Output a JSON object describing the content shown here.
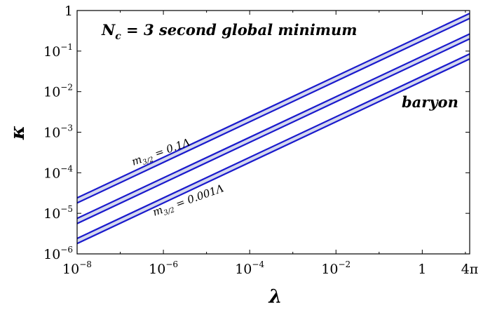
{
  "chart_data": {
    "type": "line",
    "xlabel": "λ",
    "ylabel": "κ",
    "xscale": "log",
    "yscale": "log",
    "xlim": [
      1e-08,
      12.566
    ],
    "ylim": [
      1e-06,
      1
    ],
    "xticks": [
      {
        "value": 1e-08,
        "base": "10",
        "exp": "−8",
        "text": ""
      },
      {
        "value": 1e-06,
        "base": "10",
        "exp": "−6",
        "text": ""
      },
      {
        "value": 0.0001,
        "base": "10",
        "exp": "−4",
        "text": ""
      },
      {
        "value": 0.01,
        "base": "10",
        "exp": "−2",
        "text": ""
      },
      {
        "value": 1,
        "base": "",
        "exp": "",
        "text": "1"
      },
      {
        "value": 12.566,
        "base": "",
        "exp": "",
        "text": "4π"
      }
    ],
    "yticks": [
      {
        "value": 1e-06,
        "base": "10",
        "exp": "−6",
        "text": ""
      },
      {
        "value": 1e-05,
        "base": "10",
        "exp": "−5",
        "text": ""
      },
      {
        "value": 0.0001,
        "base": "10",
        "exp": "−4",
        "text": ""
      },
      {
        "value": 0.001,
        "base": "10",
        "exp": "−3",
        "text": ""
      },
      {
        "value": 0.01,
        "base": "10",
        "exp": "−2",
        "text": ""
      },
      {
        "value": 0.1,
        "base": "10",
        "exp": "−1",
        "text": ""
      },
      {
        "value": 1,
        "base": "",
        "exp": "",
        "text": "1"
      }
    ],
    "grid": false,
    "series": [
      {
        "x": [
          1e-08,
          12.566
        ],
        "y": [
          2.4e-05,
          0.85
        ]
      },
      {
        "x": [
          1e-08,
          12.566
        ],
        "y": [
          1.8e-05,
          0.64
        ]
      },
      {
        "x": [
          1e-08,
          12.566
        ],
        "y": [
          7.5e-06,
          0.265
        ]
      },
      {
        "x": [
          1e-08,
          12.566
        ],
        "y": [
          5.6e-06,
          0.2
        ]
      },
      {
        "x": [
          1e-08,
          12.566
        ],
        "y": [
          2.4e-06,
          0.085
        ]
      },
      {
        "x": [
          1e-08,
          12.566
        ],
        "y": [
          1.8e-06,
          0.064
        ]
      }
    ],
    "bands": [
      [
        0,
        1
      ],
      [
        2,
        3
      ],
      [
        4,
        5
      ]
    ],
    "line_color": "#1a1acc",
    "band_fill": "#d4d8ee",
    "annotations": {
      "title_prefix": "N",
      "title_sub": "c",
      "title_suffix": " = 3   second global minimum",
      "baryon": "baryon",
      "top_band_label": {
        "m": "m",
        "sub": "3/2",
        "rest": " = 0.1Λ"
      },
      "bottom_band_label": {
        "m": "m",
        "sub": "3/2",
        "rest": " = 0.001Λ"
      }
    }
  }
}
